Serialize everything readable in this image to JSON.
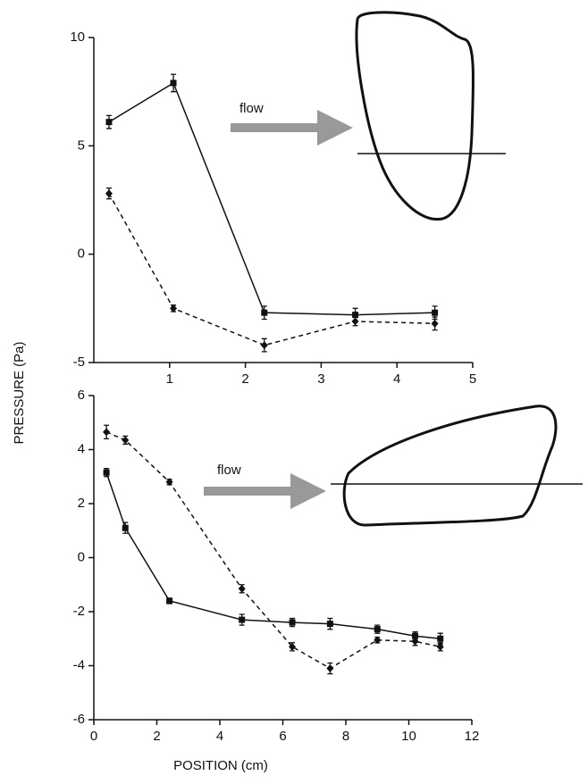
{
  "chart_data": [
    {
      "type": "line",
      "y_label": "PRESSURE (Pa)",
      "annotation": "flow",
      "xlim": [
        0,
        5
      ],
      "xticks": [
        1,
        2,
        3,
        4,
        5
      ],
      "ylim": [
        -5,
        10
      ],
      "yticks": [
        -5,
        0,
        5,
        10
      ],
      "series": [
        {
          "x": [
            0.2,
            1.05,
            2.25,
            3.45,
            4.5
          ],
          "values": [
            6.1,
            7.9,
            -2.7,
            -2.8,
            -2.7
          ],
          "errors": [
            0.3,
            0.4,
            0.3,
            0.3,
            0.3
          ],
          "color": "#111111",
          "style": "solid",
          "marker": "square"
        },
        {
          "x": [
            0.2,
            1.05,
            2.25,
            3.45,
            4.5
          ],
          "values": [
            2.8,
            -2.5,
            -4.2,
            -3.1,
            -3.2
          ],
          "errors": [
            0.25,
            0.15,
            0.3,
            0.2,
            0.3
          ],
          "color": "#111111",
          "style": "dashed",
          "marker": "diamond"
        }
      ]
    },
    {
      "type": "line",
      "x_label": "POSITION (cm)",
      "annotation": "flow",
      "xlim": [
        0,
        12
      ],
      "xticks": [
        0,
        2,
        4,
        6,
        8,
        10,
        12
      ],
      "ylim": [
        -6,
        6
      ],
      "yticks": [
        -6,
        -4,
        -2,
        0,
        2,
        4,
        6
      ],
      "series": [
        {
          "x": [
            0.4,
            1.0,
            2.4,
            4.7,
            6.3,
            7.5,
            9.0,
            10.2,
            11.0
          ],
          "values": [
            3.15,
            1.1,
            -1.6,
            -2.3,
            -2.4,
            -2.45,
            -2.65,
            -2.9,
            -3.0
          ],
          "errors": [
            0.15,
            0.2,
            0.1,
            0.2,
            0.15,
            0.2,
            0.15,
            0.15,
            0.2
          ],
          "color": "#111111",
          "style": "solid",
          "marker": "square"
        },
        {
          "x": [
            0.4,
            1.0,
            2.4,
            4.7,
            6.3,
            7.5,
            9.0,
            10.2,
            11.0
          ],
          "values": [
            4.65,
            4.35,
            2.8,
            -1.15,
            -3.3,
            -4.1,
            -3.05,
            -3.1,
            -3.3
          ],
          "errors": [
            0.25,
            0.15,
            0.1,
            0.15,
            0.15,
            0.2,
            0.1,
            0.15,
            0.15
          ],
          "color": "#111111",
          "style": "dashed",
          "marker": "diamond"
        }
      ]
    }
  ]
}
